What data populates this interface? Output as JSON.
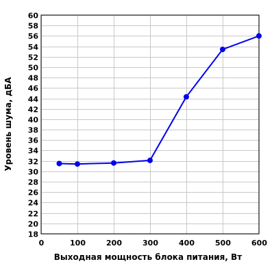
{
  "chart_data": {
    "type": "line",
    "xlabel": "Выходная мощность блока питания, Вт",
    "ylabel": "Уровень шума, дБА",
    "xlim": [
      0,
      600
    ],
    "ylim": [
      18,
      60
    ],
    "x_ticks": [
      0,
      100,
      200,
      300,
      400,
      500,
      600
    ],
    "y_ticks": [
      18,
      20,
      22,
      24,
      26,
      28,
      30,
      32,
      34,
      36,
      38,
      40,
      42,
      44,
      46,
      48,
      50,
      52,
      54,
      56,
      58,
      60
    ],
    "grid": true,
    "legend": "none",
    "series": [
      {
        "color": "#0000ee",
        "x": [
          50,
          100,
          200,
          300,
          400,
          500,
          600
        ],
        "y": [
          31.5,
          31.4,
          31.6,
          32.1,
          44.3,
          53.4,
          56.0
        ]
      }
    ]
  }
}
